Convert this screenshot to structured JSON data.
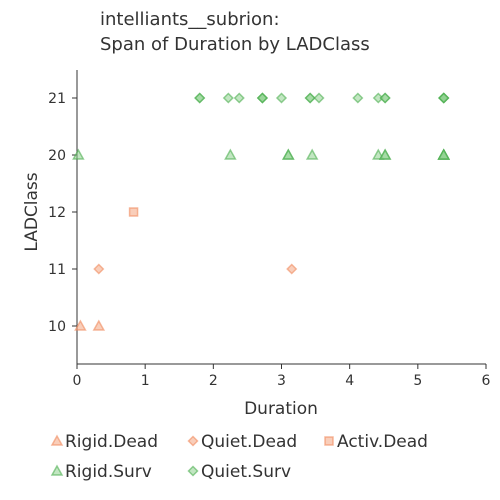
{
  "chart_data": {
    "type": "scatter",
    "title_lines": [
      "intelliants__subrion:",
      "Span of Duration by LADClass"
    ],
    "xlabel": "Duration",
    "ylabel": "LADClass",
    "xlim": [
      0,
      6
    ],
    "x_ticks": [
      0,
      1,
      2,
      3,
      4,
      5,
      6
    ],
    "y_categories": [
      "10",
      "11",
      "12",
      "20",
      "21"
    ],
    "grid": false,
    "legend_placement": "bottom",
    "series": [
      {
        "name": "Rigid.Dead",
        "marker": "triangle",
        "color": "#f4a582",
        "points": [
          {
            "x": 0.05,
            "y": "10"
          },
          {
            "x": 0.32,
            "y": "10"
          }
        ]
      },
      {
        "name": "Quiet.Dead",
        "marker": "diamond",
        "color": "#f4a582",
        "points": [
          {
            "x": 0.32,
            "y": "11"
          },
          {
            "x": 3.15,
            "y": "11"
          }
        ]
      },
      {
        "name": "Activ.Dead",
        "marker": "square",
        "color": "#f4a582",
        "points": [
          {
            "x": 0.83,
            "y": "12"
          }
        ]
      },
      {
        "name": "Rigid.Surv",
        "marker": "triangle",
        "color": "#8fd18f",
        "points": [
          {
            "x": 0.02,
            "y": "20"
          },
          {
            "x": 2.25,
            "y": "20"
          },
          {
            "x": 3.1,
            "y": "20"
          },
          {
            "x": 3.1,
            "y": "20"
          },
          {
            "x": 3.45,
            "y": "20"
          },
          {
            "x": 4.42,
            "y": "20"
          },
          {
            "x": 4.52,
            "y": "20"
          },
          {
            "x": 4.52,
            "y": "20"
          },
          {
            "x": 5.38,
            "y": "20"
          },
          {
            "x": 5.38,
            "y": "20"
          },
          {
            "x": 5.38,
            "y": "20"
          },
          {
            "x": 5.38,
            "y": "20"
          }
        ]
      },
      {
        "name": "Quiet.Surv",
        "marker": "diamond",
        "color": "#8fd18f",
        "points": [
          {
            "x": 1.8,
            "y": "21"
          },
          {
            "x": 1.8,
            "y": "21"
          },
          {
            "x": 2.22,
            "y": "21"
          },
          {
            "x": 2.38,
            "y": "21"
          },
          {
            "x": 2.72,
            "y": "21"
          },
          {
            "x": 2.72,
            "y": "21"
          },
          {
            "x": 2.72,
            "y": "21"
          },
          {
            "x": 3.0,
            "y": "21"
          },
          {
            "x": 3.42,
            "y": "21"
          },
          {
            "x": 3.42,
            "y": "21"
          },
          {
            "x": 3.55,
            "y": "21"
          },
          {
            "x": 4.12,
            "y": "21"
          },
          {
            "x": 4.42,
            "y": "21"
          },
          {
            "x": 4.52,
            "y": "21"
          },
          {
            "x": 4.52,
            "y": "21"
          },
          {
            "x": 5.38,
            "y": "21"
          },
          {
            "x": 5.38,
            "y": "21"
          },
          {
            "x": 5.38,
            "y": "21"
          },
          {
            "x": 5.38,
            "y": "21"
          },
          {
            "x": 5.38,
            "y": "21"
          }
        ]
      }
    ]
  }
}
